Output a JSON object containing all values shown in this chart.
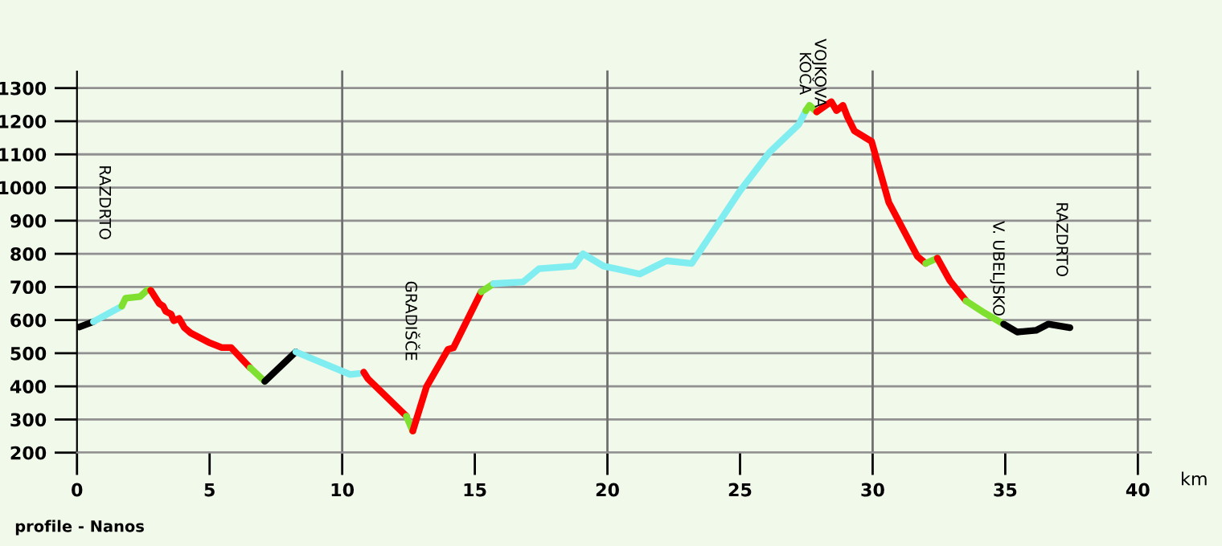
{
  "chart_data": {
    "type": "line",
    "xlabel": "km",
    "xlim": [
      0,
      40.5
    ],
    "xticks": [
      0,
      5,
      10,
      15,
      20,
      25,
      30,
      35,
      40
    ],
    "ylim": [
      200,
      1350
    ],
    "yticks": [
      200,
      300,
      400,
      500,
      600,
      700,
      800,
      900,
      1000,
      1100,
      1200,
      1300
    ],
    "grid": "y",
    "legend": false,
    "line_style": "solid",
    "marker": "none",
    "ref_lines": [
      {
        "axis": "x",
        "value": 10,
        "color": "#707070"
      },
      {
        "axis": "x",
        "value": 20,
        "color": "#707070"
      },
      {
        "axis": "x",
        "value": 30,
        "color": "#707070"
      },
      {
        "axis": "x",
        "value": 40,
        "color": "#707070"
      }
    ],
    "series": [
      {
        "color": "#000000",
        "x": [
          0.08,
          0.62
        ],
        "values": [
          579,
          595
        ]
      },
      {
        "color": "#80eef0",
        "x": [
          0.62,
          1.69
        ],
        "values": [
          595,
          642
        ]
      },
      {
        "color": "#80e030",
        "x": [
          1.69,
          1.83,
          2.38,
          2.64,
          2.78
        ],
        "values": [
          642,
          666,
          671,
          690,
          690
        ]
      },
      {
        "color": "#ff0000",
        "x": [
          2.78,
          3.1,
          3.25,
          3.35,
          3.55,
          3.65,
          3.85,
          4.05,
          4.29,
          4.96,
          5.46,
          5.81,
          6.53
        ],
        "values": [
          690,
          650,
          642,
          626,
          618,
          598,
          605,
          577,
          561,
          533,
          517,
          517,
          456
        ]
      },
      {
        "color": "#80e030",
        "x": [
          6.53,
          7.08
        ],
        "values": [
          456,
          415
        ]
      },
      {
        "color": "#000000",
        "x": [
          7.08,
          8.25
        ],
        "values": [
          415,
          504
        ]
      },
      {
        "color": "#80eef0",
        "x": [
          8.25,
          10.3,
          10.65
        ],
        "values": [
          504,
          436,
          439
        ]
      },
      {
        "color": "#ff0000",
        "x": [
          10.81,
          10.97,
          12.42
        ],
        "values": [
          443,
          423,
          310
        ]
      },
      {
        "color": "#80e030",
        "x": [
          12.42,
          12.66
        ],
        "values": [
          310,
          265
        ]
      },
      {
        "color": "#ff0000",
        "x": [
          12.66,
          13.18,
          13.99,
          14.19,
          15.24
        ],
        "values": [
          265,
          399,
          512,
          516,
          685
        ]
      },
      {
        "color": "#80e030",
        "x": [
          15.24,
          15.71
        ],
        "values": [
          685,
          710
        ]
      },
      {
        "color": "#80eef0",
        "x": [
          15.71,
          16.82,
          17.42,
          18.74,
          19.08,
          19.85,
          21.22,
          22.23,
          23.18,
          25.0,
          26.11,
          27.22,
          27.48
        ],
        "values": [
          710,
          715,
          755,
          763,
          800,
          763,
          739,
          779,
          771,
          990,
          1106,
          1191,
          1232
        ]
      },
      {
        "color": "#80e030",
        "x": [
          27.48,
          27.62,
          27.89
        ],
        "values": [
          1232,
          1248,
          1228
        ]
      },
      {
        "color": "#ff0000",
        "x": [
          27.89,
          28.44,
          28.64,
          28.88,
          29.04,
          29.31,
          29.96,
          30.61,
          31.69,
          32.0
        ],
        "values": [
          1228,
          1259,
          1232,
          1248,
          1215,
          1171,
          1139,
          955,
          792,
          771
        ]
      },
      {
        "color": "#80e030",
        "x": [
          32.0,
          32.44
        ],
        "values": [
          771,
          787
        ]
      },
      {
        "color": "#ff0000",
        "x": [
          32.44,
          32.91,
          33.52
        ],
        "values": [
          787,
          719,
          658
        ]
      },
      {
        "color": "#80e030",
        "x": [
          33.52,
          34.23,
          34.94
        ],
        "values": [
          658,
          621,
          588
        ]
      },
      {
        "color": "#000000",
        "x": [
          34.94,
          35.45,
          36.16,
          36.63,
          37.44
        ],
        "values": [
          588,
          564,
          569,
          588,
          577
        ]
      }
    ],
    "annotations": [
      "RAZDRTO",
      "GRADIŠČE",
      "VOJKOVA\nKOČA",
      "V. UBELJSKO",
      "RAZDRTO",
      "profile - Nanos"
    ]
  }
}
